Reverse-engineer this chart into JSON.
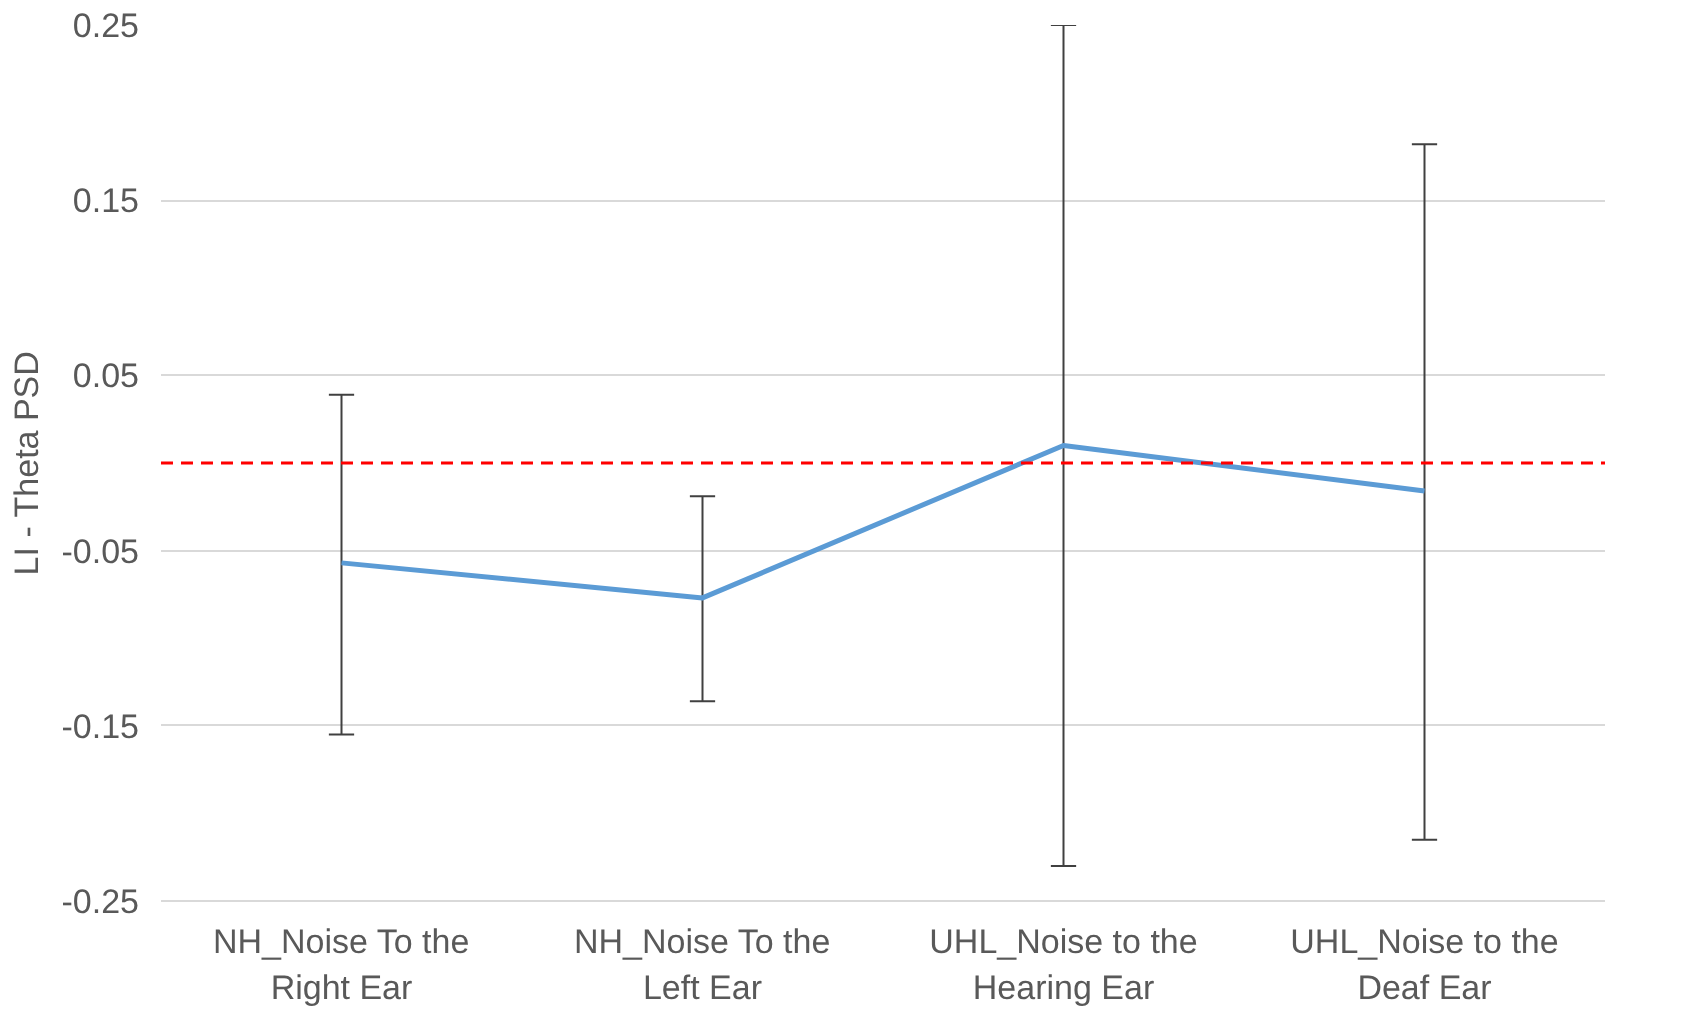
{
  "chart_data": {
    "type": "line",
    "ylabel": "LI - Theta PSD",
    "categories": [
      "NH_Noise To the Right Ear",
      "NH_Noise To the Left Ear",
      "UHL_Noise to the Hearing Ear",
      "UHL_Noise to the Deaf Ear"
    ],
    "series": [
      {
        "color": "#5b9bd5",
        "values": [
          -0.057,
          -0.077,
          0.01,
          -0.016
        ],
        "errors": [
          [
            -0.155,
            0.039
          ],
          [
            -0.136,
            -0.019
          ],
          [
            -0.23,
            0.25
          ],
          [
            -0.215,
            0.182
          ]
        ]
      }
    ],
    "ylim": [
      -0.25,
      0.25
    ],
    "yticks": [
      -0.25,
      -0.15,
      -0.05,
      0.05,
      0.15,
      0.25
    ],
    "grid": "y",
    "marker": "none",
    "line_style": "solid",
    "ref_lines": [
      {
        "axis": "y",
        "value": 0,
        "color": "#ff0000",
        "line_style": "dashed"
      }
    ]
  }
}
